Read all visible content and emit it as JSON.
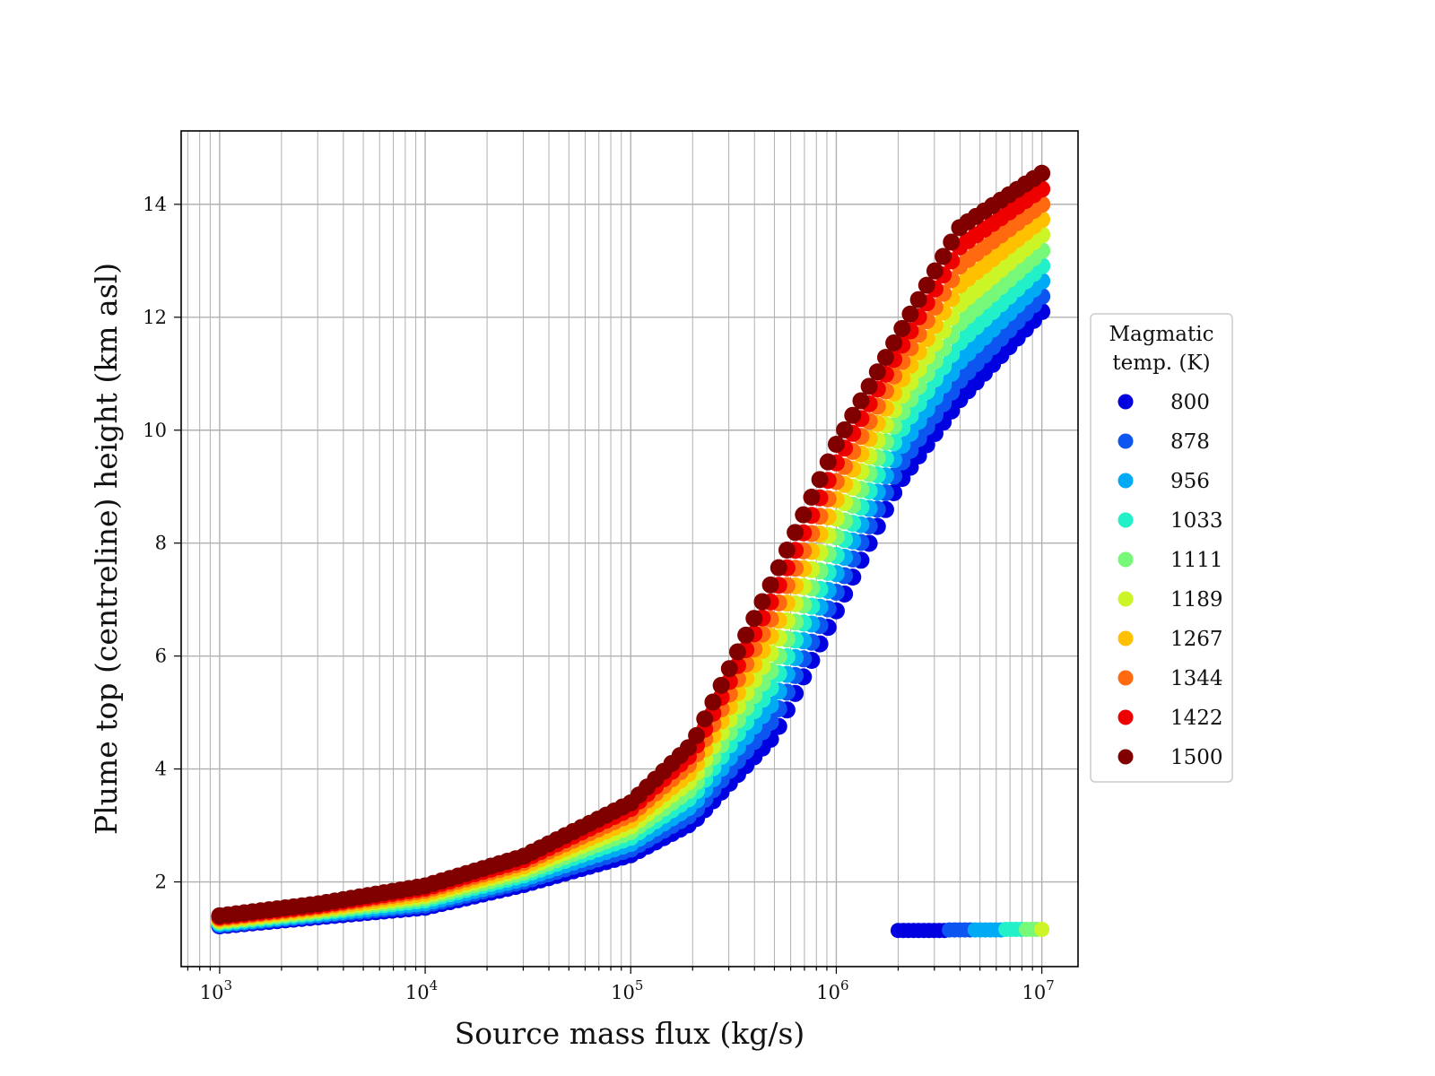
{
  "chart_data": {
    "type": "scatter",
    "xlabel": "Source mass flux (kg/s)",
    "ylabel": "Plume top (centreline) height (km asl)",
    "xscale": "log",
    "xlim": [
      650,
      15000000
    ],
    "ylim": [
      0.5,
      15.3
    ],
    "grid": true,
    "x_ticks": [
      {
        "value": 1000,
        "base": "10",
        "exp": "3"
      },
      {
        "value": 10000,
        "base": "10",
        "exp": "4"
      },
      {
        "value": 100000,
        "base": "10",
        "exp": "5"
      },
      {
        "value": 1000000,
        "base": "10",
        "exp": "6"
      },
      {
        "value": 10000000,
        "base": "10",
        "exp": "7"
      }
    ],
    "y_ticks": [
      {
        "value": 2,
        "label": "2"
      },
      {
        "value": 4,
        "label": "4"
      },
      {
        "value": 6,
        "label": "6"
      },
      {
        "value": 8,
        "label": "8"
      },
      {
        "value": 10,
        "label": "10"
      },
      {
        "value": 12,
        "label": "12"
      },
      {
        "value": 14,
        "label": "14"
      }
    ],
    "legend": {
      "title_lines": [
        "Magmatic",
        "temp. (K)"
      ],
      "placement": "right-center, outside"
    },
    "series": [
      {
        "name": "800",
        "color": "#0000e0",
        "points": [
          [
            1000,
            1.22
          ],
          [
            3000,
            1.38
          ],
          [
            10000,
            1.55
          ],
          [
            30000,
            1.95
          ],
          [
            100000,
            2.48
          ],
          [
            200000,
            3.05
          ],
          [
            500000,
            4.6
          ],
          [
            1000000,
            6.8
          ],
          [
            2000000,
            9.05
          ],
          [
            4000000,
            10.55
          ],
          [
            10000000,
            12.1
          ]
        ]
      },
      {
        "name": "878",
        "color": "#0d55f0",
        "points": [
          [
            1000,
            1.24
          ],
          [
            3000,
            1.41
          ],
          [
            10000,
            1.59
          ],
          [
            30000,
            2.01
          ],
          [
            100000,
            2.58
          ],
          [
            200000,
            3.21
          ],
          [
            500000,
            4.91
          ],
          [
            1000000,
            7.13
          ],
          [
            2000000,
            9.34
          ],
          [
            4000000,
            10.89
          ],
          [
            10000000,
            12.37
          ]
        ]
      },
      {
        "name": "956",
        "color": "#00aaf5",
        "points": [
          [
            1000,
            1.26
          ],
          [
            3000,
            1.43
          ],
          [
            10000,
            1.63
          ],
          [
            30000,
            2.06
          ],
          [
            100000,
            2.68
          ],
          [
            200000,
            3.36
          ],
          [
            500000,
            5.22
          ],
          [
            1000000,
            7.46
          ],
          [
            2000000,
            9.63
          ],
          [
            4000000,
            11.23
          ],
          [
            10000000,
            12.64
          ]
        ]
      },
      {
        "name": "1033",
        "color": "#22f0c8",
        "points": [
          [
            1000,
            1.28
          ],
          [
            3000,
            1.46
          ],
          [
            10000,
            1.68
          ],
          [
            30000,
            2.12
          ],
          [
            100000,
            2.79
          ],
          [
            200000,
            3.52
          ],
          [
            500000,
            5.53
          ],
          [
            1000000,
            7.78
          ],
          [
            2000000,
            9.93
          ],
          [
            4000000,
            11.57
          ],
          [
            10000000,
            12.91
          ]
        ]
      },
      {
        "name": "1111",
        "color": "#78f878",
        "points": [
          [
            1000,
            1.3
          ],
          [
            3000,
            1.48
          ],
          [
            10000,
            1.72
          ],
          [
            30000,
            2.17
          ],
          [
            100000,
            2.89
          ],
          [
            200000,
            3.67
          ],
          [
            500000,
            5.84
          ],
          [
            1000000,
            8.11
          ],
          [
            2000000,
            10.22
          ],
          [
            4000000,
            11.91
          ],
          [
            10000000,
            13.18
          ]
        ]
      },
      {
        "name": "1189",
        "color": "#ccf528",
        "points": [
          [
            1000,
            1.32
          ],
          [
            3000,
            1.51
          ],
          [
            10000,
            1.76
          ],
          [
            30000,
            2.23
          ],
          [
            100000,
            2.99
          ],
          [
            200000,
            3.83
          ],
          [
            500000,
            6.16
          ],
          [
            1000000,
            8.44
          ],
          [
            2000000,
            10.51
          ],
          [
            4000000,
            12.24
          ],
          [
            10000000,
            13.46
          ]
        ]
      },
      {
        "name": "1267",
        "color": "#ffc000",
        "points": [
          [
            1000,
            1.34
          ],
          [
            3000,
            1.53
          ],
          [
            10000,
            1.8
          ],
          [
            30000,
            2.28
          ],
          [
            100000,
            3.09
          ],
          [
            200000,
            3.98
          ],
          [
            500000,
            6.47
          ],
          [
            1000000,
            8.77
          ],
          [
            2000000,
            10.8
          ],
          [
            4000000,
            12.58
          ],
          [
            10000000,
            13.73
          ]
        ]
      },
      {
        "name": "1344",
        "color": "#ff6a10",
        "points": [
          [
            1000,
            1.36
          ],
          [
            3000,
            1.56
          ],
          [
            10000,
            1.85
          ],
          [
            30000,
            2.34
          ],
          [
            100000,
            3.2
          ],
          [
            200000,
            4.14
          ],
          [
            500000,
            6.78
          ],
          [
            1000000,
            9.09
          ],
          [
            2000000,
            11.1
          ],
          [
            4000000,
            12.92
          ],
          [
            10000000,
            14.0
          ]
        ]
      },
      {
        "name": "1422",
        "color": "#ee0000",
        "points": [
          [
            1000,
            1.38
          ],
          [
            3000,
            1.58
          ],
          [
            10000,
            1.89
          ],
          [
            30000,
            2.39
          ],
          [
            100000,
            3.3
          ],
          [
            200000,
            4.29
          ],
          [
            500000,
            7.09
          ],
          [
            1000000,
            9.42
          ],
          [
            2000000,
            11.39
          ],
          [
            4000000,
            13.26
          ],
          [
            10000000,
            14.27
          ]
        ]
      },
      {
        "name": "1500",
        "color": "#800000",
        "points": [
          [
            1000,
            1.4
          ],
          [
            3000,
            1.61
          ],
          [
            10000,
            1.93
          ],
          [
            30000,
            2.45
          ],
          [
            100000,
            3.4
          ],
          [
            200000,
            4.45
          ],
          [
            500000,
            7.4
          ],
          [
            1000000,
            9.75
          ],
          [
            2000000,
            11.68
          ],
          [
            4000000,
            13.6
          ],
          [
            10000000,
            14.55
          ]
        ]
      }
    ],
    "bottom_row": {
      "x_range": [
        2000000,
        10000000
      ],
      "points": [
        {
          "x": 2000000,
          "y": 1.14,
          "color": "#0000e0"
        },
        {
          "x": 3000000,
          "y": 1.14,
          "color": "#0000e0"
        },
        {
          "x": 3500000,
          "y": 1.15,
          "color": "#0d55f0"
        },
        {
          "x": 4500000,
          "y": 1.15,
          "color": "#00aaf5"
        },
        {
          "x": 5500000,
          "y": 1.15,
          "color": "#00aaf5"
        },
        {
          "x": 6500000,
          "y": 1.16,
          "color": "#22f0c8"
        },
        {
          "x": 8000000,
          "y": 1.16,
          "color": "#78f878"
        },
        {
          "x": 9500000,
          "y": 1.16,
          "color": "#ccf528"
        },
        {
          "x": 10000000,
          "y": 1.16,
          "color": "#ccf528"
        }
      ]
    }
  }
}
